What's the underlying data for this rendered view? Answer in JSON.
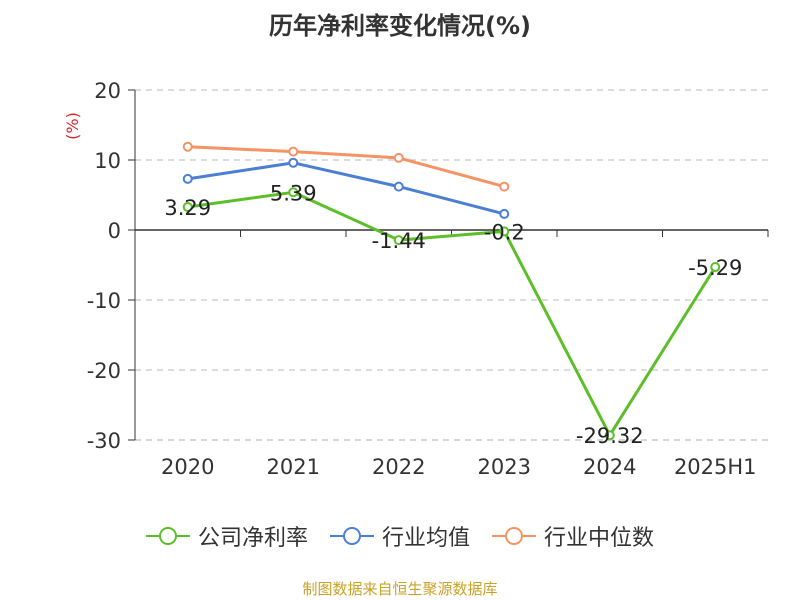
{
  "title": "历年净利率变化情况(%)",
  "source": "制图数据来自恒生聚源数据库",
  "chart_data": {
    "type": "line",
    "title": "历年净利率变化情况(%)",
    "ylabel": "(%)",
    "xlabel": "",
    "categories": [
      "2020",
      "2021",
      "2022",
      "2023",
      "2024",
      "2025H1"
    ],
    "ylim": [
      -30,
      20
    ],
    "yticks": [
      "20",
      "10",
      "0",
      "-10",
      "-20",
      "-30"
    ],
    "grid": true,
    "legend_position": "bottom",
    "series": [
      {
        "name": "公司净利率",
        "color": "#5dbe2a",
        "values": [
          3.29,
          5.39,
          -1.44,
          -0.2,
          -29.32,
          -5.29
        ],
        "labels": [
          "3.29",
          "5.39",
          "-1.44",
          "-0.2",
          "-29.32",
          "-5.29"
        ]
      },
      {
        "name": "行业均值",
        "color": "#4a7fd4",
        "values": [
          7.3,
          9.6,
          6.2,
          2.3,
          null,
          null
        ]
      },
      {
        "name": "行业中位数",
        "color": "#f59364",
        "values": [
          11.9,
          11.2,
          10.3,
          6.2,
          null,
          null
        ]
      }
    ]
  }
}
